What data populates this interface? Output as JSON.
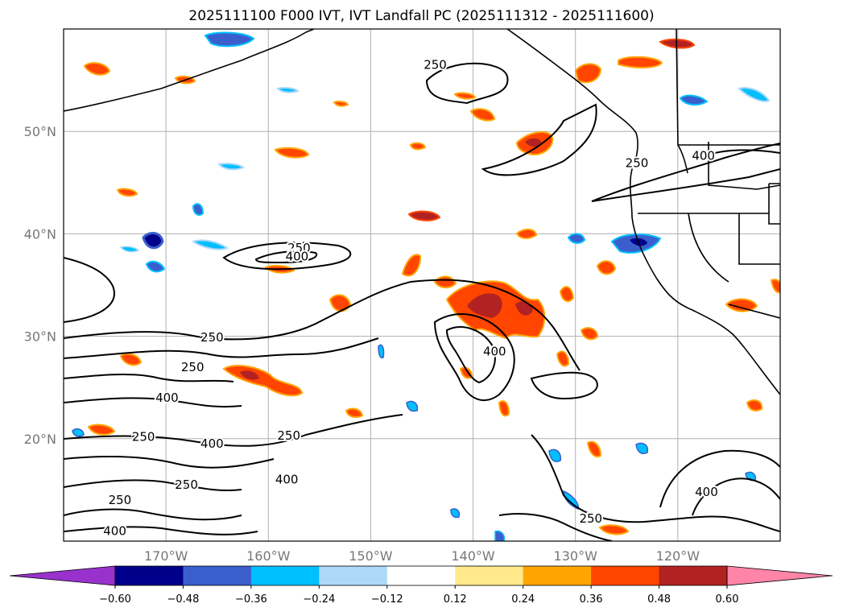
{
  "title": "2025111100 F000 IVT, IVT Landfall PC (2025111312 - 2025111600)",
  "map": {
    "lon_range": [
      -180,
      -110
    ],
    "lat_range": [
      10,
      60
    ],
    "lat_ticks": [
      {
        "value": 20,
        "label": "20°N"
      },
      {
        "value": 30,
        "label": "30°N"
      },
      {
        "value": 40,
        "label": "40°N"
      },
      {
        "value": 50,
        "label": "50°N"
      }
    ],
    "lon_ticks": [
      {
        "value": -170,
        "label": "170°W"
      },
      {
        "value": -160,
        "label": "160°W"
      },
      {
        "value": -150,
        "label": "150°W"
      },
      {
        "value": -140,
        "label": "140°W"
      },
      {
        "value": -130,
        "label": "130°W"
      },
      {
        "value": -120,
        "label": "120°W"
      }
    ],
    "grid": true,
    "contour_labels": [
      {
        "text": "250",
        "lon": -143.7,
        "lat": 56.5
      },
      {
        "text": "250",
        "lon": -157,
        "lat": 38.6
      },
      {
        "text": "400",
        "lon": -157.2,
        "lat": 37.8
      },
      {
        "text": "250",
        "lon": -124,
        "lat": 46.9
      },
      {
        "text": "400",
        "lon": -117.5,
        "lat": 47.6
      },
      {
        "text": "250",
        "lon": -165.5,
        "lat": 29.9
      },
      {
        "text": "250",
        "lon": -167.4,
        "lat": 27.0
      },
      {
        "text": "400",
        "lon": -169.9,
        "lat": 24.0
      },
      {
        "text": "400",
        "lon": -137.9,
        "lat": 28.5
      },
      {
        "text": "250",
        "lon": -172.2,
        "lat": 20.2
      },
      {
        "text": "400",
        "lon": -165.5,
        "lat": 19.5
      },
      {
        "text": "250",
        "lon": -158.0,
        "lat": 20.3
      },
      {
        "text": "400",
        "lon": -158.2,
        "lat": 16.0
      },
      {
        "text": "250",
        "lon": -168.0,
        "lat": 15.5
      },
      {
        "text": "250",
        "lon": -174.5,
        "lat": 14.0
      },
      {
        "text": "400",
        "lon": -175.0,
        "lat": 11.0
      },
      {
        "text": "250",
        "lon": -128.5,
        "lat": 12.2
      },
      {
        "text": "400",
        "lon": -117.2,
        "lat": 14.8
      }
    ]
  },
  "colorbar": {
    "ticks": [
      "−0.60",
      "−0.48",
      "−0.36",
      "−0.24",
      "−0.12",
      "0.12",
      "0.24",
      "0.36",
      "0.48",
      "0.60"
    ],
    "colors": [
      "#9932cc",
      "#00008b",
      "#3a5fcd",
      "#00bfff",
      "#add8f8",
      "#ffffff",
      "#ffe98a",
      "#ffa500",
      "#ff4500",
      "#b22222",
      "#ff85a8"
    ]
  }
}
